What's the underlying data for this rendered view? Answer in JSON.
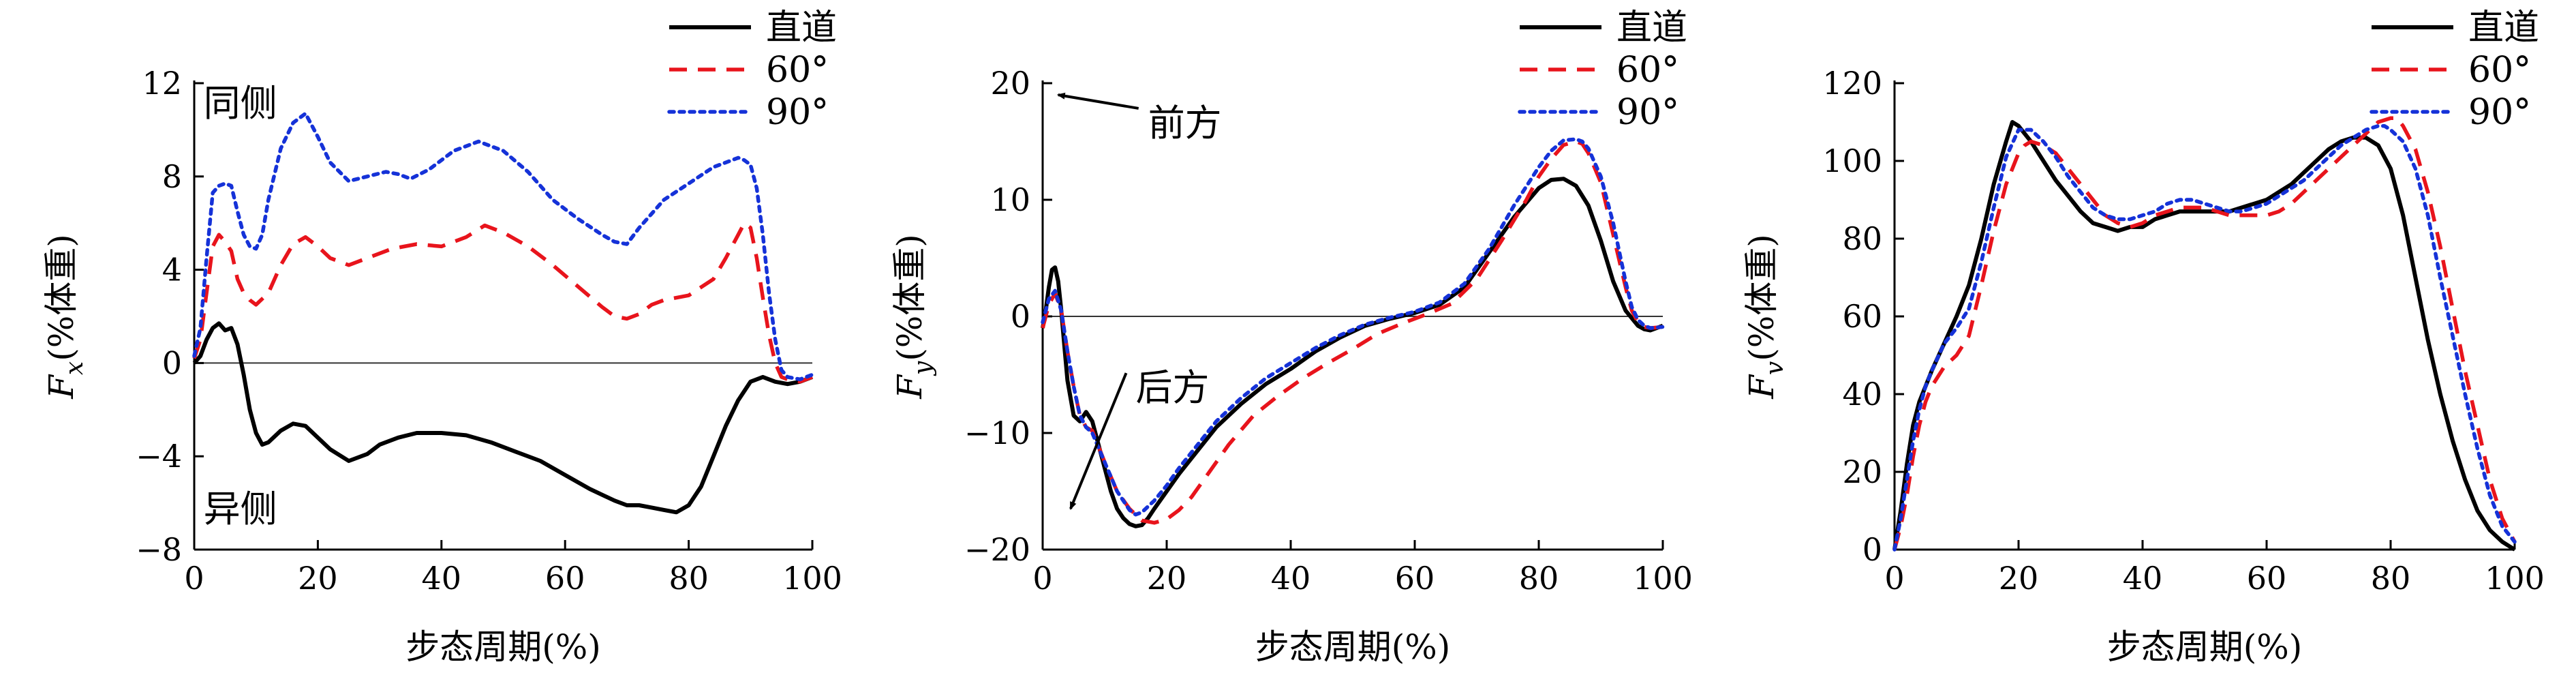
{
  "legend_labels": [
    "直道",
    "60°",
    "90°"
  ],
  "series_colors": [
    "#000000",
    "#e8141c",
    "#1532d8"
  ],
  "chart_data": [
    {
      "type": "line",
      "xlabel": "步态周期(%)",
      "ylabel_var": "F",
      "ylabel_sub": "x",
      "ylabel_unit": "(%体重)",
      "xlim": [
        0,
        100
      ],
      "ylim": [
        -8,
        12
      ],
      "xticks": [
        0,
        20,
        40,
        60,
        80,
        100
      ],
      "yticks": [
        -8,
        -4,
        0,
        4,
        8,
        12
      ],
      "ytick_labels": [
        "−8",
        "−4",
        "0",
        "4",
        "8",
        "12"
      ],
      "zero_line": true,
      "legend_position": "top-right",
      "annotations": [
        {
          "text": "同侧",
          "x": 1.5,
          "y": 10.6
        },
        {
          "text": "异侧",
          "x": 1.5,
          "y": -6.8
        }
      ],
      "series": [
        {
          "name": "直道",
          "style": "solid",
          "x": [
            0,
            1,
            2,
            3,
            4,
            5,
            6,
            7,
            8,
            9,
            10,
            11,
            12,
            14,
            16,
            18,
            20,
            22,
            25,
            28,
            30,
            33,
            36,
            40,
            44,
            48,
            52,
            56,
            60,
            64,
            68,
            70,
            72,
            74,
            76,
            78,
            80,
            82,
            84,
            86,
            88,
            90,
            92,
            94,
            96,
            98,
            100
          ],
          "y": [
            0,
            0.3,
            1.0,
            1.5,
            1.7,
            1.4,
            1.5,
            0.8,
            -0.5,
            -2.0,
            -3.0,
            -3.5,
            -3.4,
            -2.9,
            -2.6,
            -2.7,
            -3.2,
            -3.7,
            -4.2,
            -3.9,
            -3.5,
            -3.2,
            -3.0,
            -3.0,
            -3.1,
            -3.4,
            -3.8,
            -4.2,
            -4.8,
            -5.4,
            -5.9,
            -6.1,
            -6.1,
            -6.2,
            -6.3,
            -6.4,
            -6.1,
            -5.3,
            -4.0,
            -2.7,
            -1.6,
            -0.8,
            -0.6,
            -0.8,
            -0.9,
            -0.8,
            -0.6
          ]
        },
        {
          "name": "60°",
          "style": "dashed",
          "x": [
            0,
            1,
            2,
            3,
            4,
            5,
            6,
            7,
            8,
            9,
            10,
            12,
            14,
            16,
            18,
            20,
            22,
            25,
            28,
            32,
            36,
            40,
            44,
            47,
            50,
            54,
            58,
            62,
            66,
            68,
            70,
            72,
            74,
            76,
            80,
            84,
            86,
            88,
            89,
            90,
            91,
            92,
            93,
            94,
            95,
            96,
            98,
            100
          ],
          "y": [
            0.2,
            1.0,
            3.0,
            5.0,
            5.5,
            5.2,
            4.8,
            3.6,
            3.0,
            2.7,
            2.5,
            3.0,
            4.2,
            5.1,
            5.4,
            5.0,
            4.5,
            4.2,
            4.5,
            4.9,
            5.1,
            5.0,
            5.4,
            5.9,
            5.6,
            5.0,
            4.2,
            3.3,
            2.4,
            2.0,
            1.9,
            2.1,
            2.5,
            2.7,
            2.9,
            3.6,
            4.5,
            5.5,
            6.0,
            5.8,
            4.5,
            2.8,
            1.2,
            0.0,
            -0.6,
            -0.7,
            -0.8,
            -0.6
          ]
        },
        {
          "name": "90°",
          "style": "dotted",
          "x": [
            0,
            1,
            2,
            3,
            4,
            5,
            6,
            7,
            8,
            9,
            10,
            11,
            12,
            14,
            16,
            18,
            20,
            22,
            25,
            28,
            31,
            33,
            35,
            38,
            42,
            46,
            50,
            54,
            58,
            62,
            66,
            68,
            70,
            72,
            74,
            76,
            80,
            84,
            86,
            88,
            89,
            90,
            91,
            92,
            93,
            94,
            95,
            96,
            98,
            100
          ],
          "y": [
            0.3,
            1.5,
            4.5,
            7.3,
            7.6,
            7.7,
            7.6,
            6.5,
            5.5,
            5.0,
            4.9,
            5.5,
            7.0,
            9.2,
            10.3,
            10.7,
            9.7,
            8.6,
            7.8,
            8.0,
            8.2,
            8.1,
            7.9,
            8.3,
            9.1,
            9.5,
            9.1,
            8.2,
            7.0,
            6.2,
            5.5,
            5.2,
            5.1,
            5.8,
            6.4,
            7.0,
            7.7,
            8.4,
            8.6,
            8.8,
            8.7,
            8.5,
            7.5,
            5.5,
            3.0,
            1.0,
            -0.3,
            -0.6,
            -0.7,
            -0.5
          ]
        }
      ]
    },
    {
      "type": "line",
      "xlabel": "步态周期(%)",
      "ylabel_var": "F",
      "ylabel_sub": "y",
      "ylabel_unit": "(%体重)",
      "xlim": [
        0,
        100
      ],
      "ylim": [
        -20,
        20
      ],
      "xticks": [
        0,
        20,
        40,
        60,
        80,
        100
      ],
      "yticks": [
        -20,
        -10,
        0,
        10,
        20
      ],
      "ytick_labels": [
        "−20",
        "−10",
        "0",
        "10",
        "20"
      ],
      "zero_line": true,
      "legend_position": "top-right",
      "annotations": [
        {
          "text": "前方",
          "x": 17,
          "y": 15.5,
          "arrow_to": [
            2.5,
            19
          ]
        },
        {
          "text": "后方",
          "x": 15,
          "y": -7.2,
          "arrow_to": [
            4.5,
            -16.5
          ]
        }
      ],
      "series": [
        {
          "name": "直道",
          "style": "solid",
          "x": [
            0,
            0.5,
            1,
            1.5,
            2,
            2.5,
            3,
            3.5,
            4,
            5,
            6,
            7,
            8,
            9,
            10,
            11,
            12,
            13,
            14,
            15,
            16,
            17,
            18,
            20,
            22,
            25,
            28,
            32,
            36,
            40,
            44,
            48,
            52,
            56,
            60,
            64,
            68,
            72,
            76,
            80,
            82,
            84,
            86,
            88,
            90,
            92,
            94,
            96,
            97,
            98,
            100
          ],
          "y": [
            -1.0,
            0.5,
            2.5,
            4.0,
            4.2,
            3.0,
            0.5,
            -2.5,
            -5.5,
            -8.5,
            -9.0,
            -8.2,
            -9.0,
            -11.0,
            -13.0,
            -15.0,
            -16.5,
            -17.3,
            -17.8,
            -18.0,
            -17.9,
            -17.3,
            -16.5,
            -15.0,
            -13.5,
            -11.5,
            -9.5,
            -7.5,
            -5.8,
            -4.5,
            -3.0,
            -1.8,
            -0.8,
            -0.2,
            0.3,
            1.0,
            2.5,
            5.5,
            8.5,
            11.0,
            11.7,
            11.8,
            11.2,
            9.5,
            6.5,
            3.0,
            0.5,
            -0.8,
            -1.1,
            -1.2,
            -0.8
          ]
        },
        {
          "name": "60°",
          "style": "dashed",
          "x": [
            0,
            1,
            2,
            3,
            4,
            5,
            6,
            7,
            8,
            10,
            12,
            14,
            16,
            18,
            20,
            22,
            24,
            26,
            28,
            30,
            34,
            38,
            42,
            46,
            50,
            54,
            58,
            62,
            66,
            70,
            74,
            78,
            80,
            82,
            84,
            86,
            87,
            88,
            90,
            92,
            94,
            95,
            96,
            97,
            98,
            100
          ],
          "y": [
            -1.0,
            1.0,
            2.0,
            0.5,
            -3.0,
            -6.0,
            -8.5,
            -9.5,
            -9.8,
            -12.5,
            -15.0,
            -16.5,
            -17.5,
            -17.7,
            -17.4,
            -16.6,
            -15.5,
            -14.0,
            -12.5,
            -11.0,
            -8.5,
            -6.8,
            -5.3,
            -4.0,
            -2.8,
            -1.5,
            -0.6,
            0.2,
            1.1,
            3.2,
            6.5,
            10.0,
            12.0,
            13.5,
            14.7,
            15.0,
            14.8,
            14.0,
            11.5,
            7.0,
            2.5,
            0.5,
            -0.5,
            -0.9,
            -1.0,
            -0.9
          ]
        },
        {
          "name": "90°",
          "style": "dotted",
          "x": [
            0,
            1,
            2,
            3,
            4,
            5,
            6,
            7,
            8,
            10,
            12,
            14,
            15,
            16,
            18,
            20,
            22,
            25,
            28,
            32,
            36,
            40,
            44,
            48,
            52,
            56,
            60,
            64,
            68,
            72,
            76,
            80,
            82,
            84,
            86,
            87,
            88,
            90,
            92,
            94,
            95,
            96,
            97,
            98,
            100
          ],
          "y": [
            -0.5,
            1.5,
            2.2,
            0.5,
            -3.0,
            -6.0,
            -8.5,
            -9.5,
            -10.0,
            -12.5,
            -15.0,
            -16.6,
            -17.0,
            -16.8,
            -15.8,
            -14.5,
            -13.0,
            -11.0,
            -9.0,
            -7.0,
            -5.3,
            -4.0,
            -2.7,
            -1.6,
            -0.7,
            -0.1,
            0.4,
            1.2,
            2.8,
            5.8,
            9.5,
            12.8,
            14.2,
            15.1,
            15.2,
            15.0,
            14.4,
            12.0,
            8.0,
            3.0,
            0.8,
            -0.3,
            -0.8,
            -1.0,
            -0.9
          ]
        }
      ]
    },
    {
      "type": "line",
      "xlabel": "步态周期(%)",
      "ylabel_var": "F",
      "ylabel_sub": "v",
      "ylabel_unit": "(%体重)",
      "xlim": [
        0,
        100
      ],
      "ylim": [
        0,
        120
      ],
      "xticks": [
        0,
        20,
        40,
        60,
        80,
        100
      ],
      "yticks": [
        20,
        40,
        60,
        80,
        100,
        120
      ],
      "ytick_labels": [
        "20",
        "40",
        "60",
        "80",
        "100",
        "120"
      ],
      "origin_label": "0",
      "zero_line": false,
      "legend_position": "top-right",
      "annotations": [],
      "series": [
        {
          "name": "直道",
          "style": "solid",
          "x": [
            0,
            1,
            2,
            3,
            4,
            5,
            6,
            8,
            10,
            12,
            14,
            16,
            18,
            19,
            20,
            22,
            24,
            26,
            28,
            30,
            32,
            34,
            36,
            38,
            40,
            42,
            44,
            46,
            48,
            50,
            52,
            54,
            56,
            58,
            60,
            62,
            64,
            66,
            68,
            70,
            72,
            74,
            76,
            78,
            80,
            82,
            84,
            86,
            88,
            90,
            92,
            94,
            96,
            98,
            100
          ],
          "y": [
            0,
            10,
            22,
            32,
            38,
            42,
            46,
            53,
            60,
            68,
            80,
            94,
            105,
            110,
            109,
            105,
            100,
            95,
            91,
            87,
            84,
            83,
            82,
            83,
            83,
            85,
            86,
            87,
            87,
            87,
            87,
            87,
            88,
            89,
            90,
            92,
            94,
            97,
            100,
            103,
            105,
            106,
            106,
            104,
            98,
            86,
            70,
            54,
            40,
            28,
            18,
            10,
            5,
            2,
            0
          ]
        },
        {
          "name": "60°",
          "style": "dashed",
          "x": [
            0,
            1,
            2,
            3,
            4,
            5,
            6,
            8,
            10,
            12,
            14,
            16,
            18,
            20,
            21,
            22,
            24,
            26,
            28,
            30,
            32,
            34,
            36,
            38,
            40,
            42,
            44,
            46,
            48,
            50,
            52,
            54,
            56,
            58,
            60,
            62,
            64,
            66,
            68,
            70,
            72,
            74,
            76,
            78,
            80,
            81,
            82,
            84,
            86,
            88,
            90,
            92,
            94,
            96,
            98,
            100
          ],
          "y": [
            0,
            6,
            14,
            24,
            32,
            38,
            42,
            47,
            50,
            55,
            68,
            82,
            94,
            102,
            104,
            105,
            104,
            102,
            98,
            94,
            90,
            86,
            84,
            83,
            84,
            86,
            87,
            88,
            88,
            88,
            87,
            86,
            86,
            86,
            86,
            87,
            89,
            92,
            95,
            98,
            101,
            104,
            107,
            110,
            111,
            111,
            109,
            103,
            92,
            78,
            62,
            46,
            32,
            18,
            8,
            2
          ]
        },
        {
          "name": "90°",
          "style": "dotted",
          "x": [
            0,
            1,
            2,
            3,
            4,
            5,
            6,
            8,
            10,
            12,
            14,
            16,
            18,
            20,
            22,
            24,
            26,
            28,
            30,
            32,
            34,
            36,
            38,
            40,
            42,
            44,
            46,
            48,
            50,
            52,
            54,
            56,
            58,
            60,
            62,
            64,
            66,
            68,
            70,
            72,
            74,
            76,
            78,
            79,
            80,
            82,
            84,
            86,
            88,
            90,
            92,
            94,
            96,
            98,
            100
          ],
          "y": [
            0,
            8,
            18,
            28,
            36,
            42,
            46,
            53,
            57,
            62,
            74,
            88,
            101,
            108,
            108,
            105,
            101,
            96,
            92,
            88,
            86,
            85,
            85,
            86,
            87,
            89,
            90,
            90,
            89,
            88,
            87,
            87,
            88,
            89,
            91,
            93,
            95,
            98,
            101,
            104,
            106,
            108,
            109,
            109,
            108,
            105,
            98,
            86,
            70,
            55,
            40,
            26,
            14,
            6,
            2
          ]
        }
      ]
    }
  ]
}
